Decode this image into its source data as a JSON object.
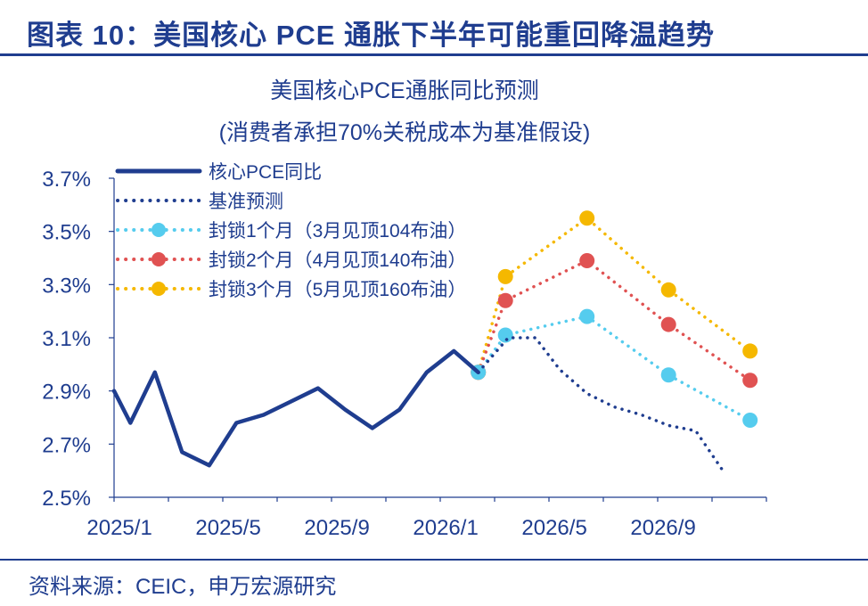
{
  "figure_title": "图表 10：美国核心 PCE 通胀下半年可能重回降温趋势",
  "source": "资料来源：CEIC，申万宏源研究",
  "chart_data": {
    "type": "line",
    "title": "美国核心PCE通胀同比预测",
    "subtitle": "(消费者承担70%关税成本为基准假设)",
    "xlabel": "",
    "ylabel": "",
    "ylim": [
      2.5,
      3.7
    ],
    "yticks": [
      2.5,
      2.7,
      2.9,
      3.1,
      3.3,
      3.5,
      3.7
    ],
    "ytick_labels": [
      "2.5%",
      "2.7%",
      "2.9%",
      "3.1%",
      "3.3%",
      "3.5%",
      "3.7%"
    ],
    "x_index_range": [
      0,
      24
    ],
    "xticks": [
      {
        "i": 0,
        "label": "2025/1"
      },
      {
        "i": 4,
        "label": "2025/5"
      },
      {
        "i": 8,
        "label": "2025/9"
      },
      {
        "i": 12,
        "label": "2026/1"
      },
      {
        "i": 16,
        "label": "2026/5"
      },
      {
        "i": 20,
        "label": "2026/9"
      }
    ],
    "legend_position": "top-left",
    "series": [
      {
        "name": "核心PCE同比",
        "style": "solid",
        "color": "#1f3d8f",
        "points": [
          [
            0,
            2.9
          ],
          [
            0.6,
            2.78
          ],
          [
            1.5,
            2.97
          ],
          [
            2.5,
            2.67
          ],
          [
            3.5,
            2.62
          ],
          [
            4.5,
            2.78
          ],
          [
            5.5,
            2.81
          ],
          [
            6.5,
            2.86
          ],
          [
            7.5,
            2.91
          ],
          [
            8.5,
            2.83
          ],
          [
            9.5,
            2.76
          ],
          [
            10.5,
            2.83
          ],
          [
            11.5,
            2.97
          ],
          [
            12.5,
            3.05
          ],
          [
            13.4,
            2.97
          ]
        ]
      },
      {
        "name": "基准预测",
        "style": "dotted",
        "color": "#1f3d8f",
        "points": [
          [
            13.4,
            2.97
          ],
          [
            14.5,
            3.1
          ],
          [
            15.5,
            3.1
          ],
          [
            16.4,
            2.98
          ],
          [
            17.4,
            2.89
          ],
          [
            18.4,
            2.84
          ],
          [
            19.4,
            2.81
          ],
          [
            20.4,
            2.77
          ],
          [
            21.4,
            2.75
          ],
          [
            22.4,
            2.6
          ]
        ]
      },
      {
        "name": "封锁1个月（3月见顶104布油）",
        "style": "dotted-marker",
        "color": "#55ccee",
        "points": [
          [
            13.4,
            2.97
          ],
          [
            14.4,
            3.11
          ],
          [
            17.4,
            3.18
          ],
          [
            20.4,
            2.96
          ],
          [
            23.4,
            2.79
          ]
        ]
      },
      {
        "name": "封锁2个月（4月见顶140布油）",
        "style": "dotted-marker",
        "color": "#e05252",
        "points": [
          [
            13.4,
            2.97
          ],
          [
            14.4,
            3.24
          ],
          [
            17.4,
            3.39
          ],
          [
            20.4,
            3.15
          ],
          [
            23.4,
            2.94
          ]
        ]
      },
      {
        "name": "封锁3个月（5月见顶160布油）",
        "style": "dotted-marker",
        "color": "#f5b800",
        "points": [
          [
            13.4,
            2.97
          ],
          [
            14.4,
            3.33
          ],
          [
            17.4,
            3.55
          ],
          [
            20.4,
            3.28
          ],
          [
            23.4,
            3.05
          ]
        ]
      }
    ]
  }
}
